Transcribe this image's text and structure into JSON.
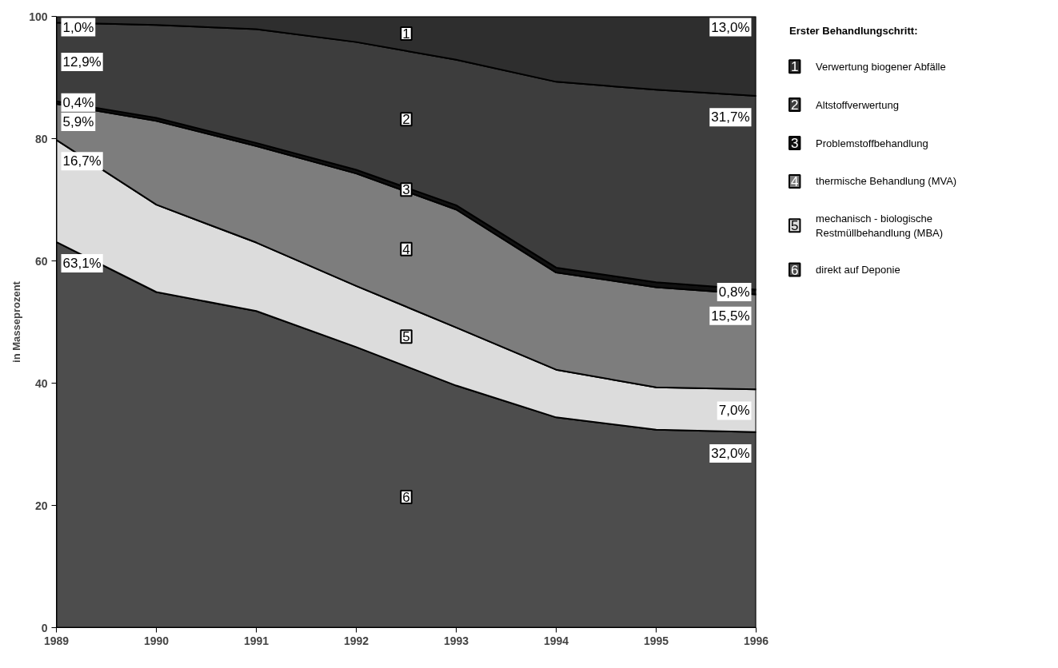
{
  "chart_data": {
    "type": "area",
    "stacked": true,
    "ylabel": "in Masseprozent",
    "legend_title": "Erster Behandlungschritt:",
    "legend": "right",
    "x": [
      1989,
      1990,
      1991,
      1992,
      1993,
      1994,
      1995,
      1996
    ],
    "xlim": [
      1989,
      1996
    ],
    "xticks": [
      1989,
      1990,
      1991,
      1992,
      1993,
      1994,
      1995,
      1996
    ],
    "ylim": [
      0,
      100
    ],
    "yticks": [
      0,
      20,
      40,
      60,
      80,
      100
    ],
    "series": [
      {
        "name": "direkt auf Deponie",
        "color": "#4d4d4d",
        "values": [
          63.1,
          54.9,
          51.8,
          45.9,
          39.6,
          34.4,
          32.4,
          32.0
        ],
        "value_labels": [
          "63,1%",
          null,
          null,
          null,
          null,
          null,
          null,
          "32,0%"
        ]
      },
      {
        "name": "mechanisch - biologische\nRestmüllbehandlung (MBA)",
        "color": "#dcdcdc",
        "values": [
          16.7,
          14.3,
          11.2,
          10.0,
          9.5,
          7.8,
          6.9,
          7.0
        ],
        "value_labels": [
          "16,7%",
          null,
          null,
          null,
          null,
          null,
          null,
          "7,0%"
        ]
      },
      {
        "name": "thermische Behandlung (MVA)",
        "color": "#7d7d7d",
        "values": [
          5.9,
          13.7,
          15.8,
          18.4,
          19.3,
          15.9,
          16.4,
          15.5
        ],
        "value_labels": [
          "5,9%",
          null,
          null,
          null,
          null,
          null,
          null,
          "15,5%"
        ]
      },
      {
        "name": "Problemstoffbehandlung",
        "color": "#111111",
        "values": [
          0.4,
          0.5,
          0.5,
          0.6,
          0.7,
          0.8,
          0.8,
          0.8
        ],
        "value_labels": [
          "0,4%",
          null,
          null,
          null,
          null,
          null,
          null,
          "0,8%"
        ]
      },
      {
        "name": "Altstoffverwertung",
        "color": "#3d3d3d",
        "values": [
          12.9,
          15.2,
          18.6,
          20.9,
          23.8,
          30.4,
          31.5,
          31.7
        ],
        "value_labels": [
          "12,9%",
          null,
          null,
          null,
          null,
          null,
          null,
          "31,7%"
        ]
      },
      {
        "name": "Verwertung biogener Abfälle",
        "color": "#2e2e2e",
        "values": [
          1.0,
          1.4,
          2.1,
          4.2,
          7.1,
          10.7,
          12.0,
          13.0
        ],
        "value_labels": [
          "1,0%",
          null,
          null,
          null,
          null,
          null,
          null,
          "13,0%"
        ]
      }
    ],
    "annotations": [
      "1",
      "2",
      "3",
      "4",
      "5",
      "6"
    ]
  }
}
